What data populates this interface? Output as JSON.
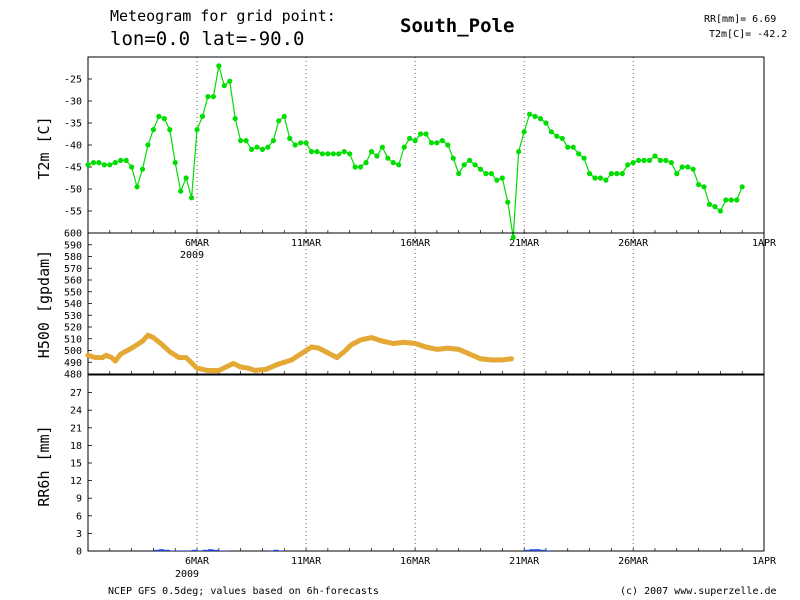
{
  "header": {
    "line1": "Meteogram for grid point:",
    "line2": "lon=0.0 lat=-90.0",
    "location": "South_Pole",
    "rr_total": "RR[mm]= 6.69",
    "t2m_mean": "T2m[C]= -42.2"
  },
  "footer": {
    "left": "NCEP GFS 0.5deg; values based on 6h-forecasts",
    "right": "(c) 2007 www.superzelle.de"
  },
  "x_axis": {
    "start": "2009-03-01",
    "end": "2009-04-01",
    "ticks": [
      "6MAR",
      "11MAR",
      "16MAR",
      "21MAR",
      "26MAR",
      "1APR"
    ],
    "year": "2009"
  },
  "colors": {
    "t2m": "#00dd00",
    "h500": "#e4a835",
    "rr6h": "#2244dd",
    "grid": "#000000"
  },
  "chart_data": [
    {
      "type": "line",
      "ylabel": "T2m [C]",
      "ylim": [
        -60,
        -20
      ],
      "yticks": [
        -55,
        -50,
        -45,
        -40,
        -35,
        -30,
        -25
      ],
      "series": [
        {
          "x_start": "2009-03-01",
          "step_hours": 6,
          "values": [
            -44.5,
            -44,
            -44,
            -44.5,
            -44.5,
            -44,
            -43.5,
            -43.5,
            -45,
            -49.5,
            -45.5,
            -40,
            -36.5,
            -33.5,
            -34,
            -36.5,
            -44,
            -50.5,
            -47.5,
            -52,
            -36.5,
            -33.5,
            -29,
            -29,
            -22,
            -26.5,
            -25.5,
            -34,
            -39,
            -39,
            -41,
            -40.5,
            -41,
            -40.5,
            -39,
            -34.5,
            -33.5,
            -38.5,
            -40,
            -39.5,
            -39.5,
            -41.5,
            -41.5,
            -42,
            -42,
            -42,
            -42,
            -41.5,
            -42,
            -45,
            -45,
            -44,
            -41.5,
            -42.5,
            -40.5,
            -43,
            -44,
            -44.5,
            -40.5,
            -38.5,
            -39,
            -37.5,
            -37.5,
            -39.5,
            -39.5,
            -39,
            -40,
            -43,
            -46.5,
            -44.5,
            -43.5,
            -44.5,
            -45.5,
            -46.5,
            -46.5,
            -48,
            -47.5,
            -53,
            -61,
            -41.5,
            -37,
            -33,
            -33.5,
            -34,
            -35,
            -37,
            -38,
            -38.5,
            -40.5,
            -40.5,
            -42,
            -43,
            -46.5,
            -47.5,
            -47.5,
            -48,
            -46.5,
            -46.5,
            -46.5,
            -44.5,
            -44,
            -43.5,
            -43.5,
            -43.5,
            -42.5,
            -43.5,
            -43.5,
            -44,
            -46.5,
            -45,
            -45,
            -45.5,
            -49,
            -49.5,
            -53.5,
            -54,
            -55,
            -52.5,
            -52.5,
            -52.5,
            -49.5
          ]
        }
      ]
    },
    {
      "type": "line",
      "ylabel": "H500 [gpdam]",
      "ylim": [
        480,
        600
      ],
      "yticks": [
        480,
        490,
        500,
        510,
        520,
        530,
        540,
        550,
        560,
        570,
        580,
        590,
        600
      ],
      "series": [
        {
          "x_start": "2009-03-01",
          "step_hours": 6,
          "anchors": [
            [
              0,
              496
            ],
            [
              8,
              494
            ],
            [
              16,
              494
            ],
            [
              20,
              496
            ],
            [
              26,
              494
            ],
            [
              30,
              491
            ],
            [
              36,
              497
            ],
            [
              48,
              502
            ],
            [
              60,
              508
            ],
            [
              66,
              513
            ],
            [
              72,
              511
            ],
            [
              80,
              506
            ],
            [
              90,
              499
            ],
            [
              100,
              494
            ],
            [
              108,
              494
            ],
            [
              112,
              491
            ],
            [
              120,
              485
            ],
            [
              132,
              483
            ],
            [
              144,
              483
            ],
            [
              160,
              489
            ],
            [
              168,
              486
            ],
            [
              176,
              485
            ],
            [
              184,
              483
            ],
            [
              196,
              484
            ],
            [
              208,
              488
            ],
            [
              224,
              492
            ],
            [
              236,
              498
            ],
            [
              246,
              503
            ],
            [
              254,
              502
            ],
            [
              264,
              498
            ],
            [
              274,
              494
            ],
            [
              282,
              499
            ],
            [
              290,
              505
            ],
            [
              300,
              509
            ],
            [
              312,
              511
            ],
            [
              324,
              508
            ],
            [
              336,
              506
            ],
            [
              348,
              507
            ],
            [
              360,
              506
            ],
            [
              372,
              503
            ],
            [
              384,
              501
            ],
            [
              396,
              502
            ],
            [
              408,
              501
            ],
            [
              420,
              497
            ],
            [
              432,
              493
            ],
            [
              444,
              492
            ],
            [
              456,
              492
            ],
            [
              466,
              493
            ]
          ]
        }
      ]
    },
    {
      "type": "bar",
      "ylabel": "RR6h [mm]",
      "ylim": [
        0,
        30
      ],
      "yticks": [
        0,
        3,
        6,
        9,
        12,
        15,
        18,
        21,
        24,
        27
      ],
      "series": [
        {
          "x_start": "2009-03-01",
          "step_hours": 6,
          "values": [
            0,
            0,
            0,
            0,
            0,
            0,
            0,
            0,
            0,
            0,
            0,
            0,
            0.2,
            0.3,
            0.2,
            0.1,
            0.1,
            0.1,
            0.1,
            0.2,
            0.1,
            0.2,
            0.3,
            0.2,
            0.1,
            0.1,
            0,
            0,
            0,
            0,
            0,
            0,
            0,
            0.1,
            0.2,
            0.1,
            0,
            0,
            0,
            0,
            0,
            0,
            0,
            0,
            0,
            0,
            0,
            0,
            0,
            0,
            0,
            0,
            0,
            0,
            0,
            0,
            0,
            0,
            0,
            0,
            0,
            0,
            0,
            0,
            0,
            0,
            0,
            0,
            0,
            0,
            0,
            0,
            0,
            0,
            0,
            0,
            0,
            0,
            0,
            0,
            0.2,
            0.3,
            0.3,
            0.2,
            0.1,
            0,
            0,
            0,
            0,
            0,
            0,
            0,
            0,
            0,
            0,
            0,
            0,
            0,
            0,
            0,
            0,
            0,
            0,
            0,
            0,
            0,
            0,
            0,
            0,
            0,
            0,
            0,
            0,
            0,
            0,
            0,
            0,
            0,
            0,
            0,
            0,
            0,
            0
          ]
        }
      ]
    }
  ]
}
